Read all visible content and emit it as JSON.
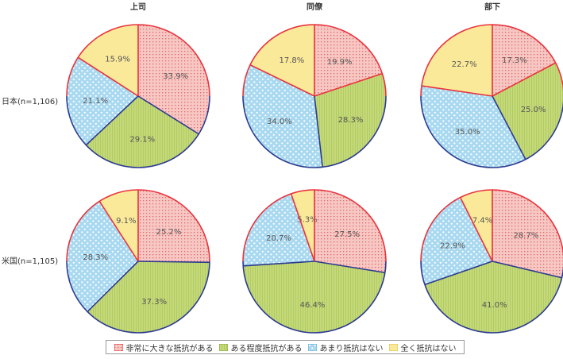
{
  "chart_data": {
    "type": "pie",
    "columns": [
      "上司",
      "同僚",
      "部下"
    ],
    "rows": [
      "日本(n=1,106)",
      "米国(n=1,105)"
    ],
    "categories": [
      "非常に大きな抵抗がある",
      "ある程度抵抗がある",
      "あまり抵抗はない",
      "全く抵抗はない"
    ],
    "pies": [
      {
        "row": "日本(n=1,106)",
        "column": "上司",
        "values": [
          33.9,
          29.1,
          21.1,
          15.9
        ],
        "labels": [
          "33.9%",
          "29.1%",
          "21.1%",
          "15.9%"
        ]
      },
      {
        "row": "日本(n=1,106)",
        "column": "同僚",
        "values": [
          19.9,
          28.3,
          34.0,
          17.8
        ],
        "labels": [
          "19.9%",
          "28.3%",
          "34.0%",
          "17.8%"
        ]
      },
      {
        "row": "日本(n=1,106)",
        "column": "部下",
        "values": [
          17.3,
          25.0,
          35.0,
          22.7
        ],
        "labels": [
          "17.3%",
          "25.0%",
          "35.0%",
          "22.7%"
        ]
      },
      {
        "row": "米国(n=1,105)",
        "column": "上司",
        "values": [
          25.2,
          37.3,
          28.3,
          9.1
        ],
        "labels": [
          "25.2%",
          "37.3%",
          "28.3%",
          "9.1%"
        ]
      },
      {
        "row": "米国(n=1,105)",
        "column": "同僚",
        "values": [
          27.5,
          46.4,
          20.7,
          5.3
        ],
        "labels": [
          "27.5%",
          "46.4%",
          "20.7%",
          "5.3%"
        ]
      },
      {
        "row": "米国(n=1,105)",
        "column": "部下",
        "values": [
          28.7,
          41.0,
          22.9,
          7.4
        ],
        "labels": [
          "28.7%",
          "41.0%",
          "22.9%",
          "7.4%"
        ]
      }
    ],
    "colors": {
      "fills": [
        "#f7c7c3",
        "#c4d97a",
        "#a9d9f0",
        "#fbe99a"
      ],
      "dots": [
        "#e06a6a",
        "#c4d97a",
        "#ffffff",
        "#fbe99a"
      ],
      "outline_top": "#e8323c",
      "outline_bottom": "#2b3a8f",
      "label_text": "#555555"
    },
    "legend": {
      "position": "bottom",
      "items": [
        {
          "label": "非常に大きな抵抗がある",
          "pattern": "grid-red"
        },
        {
          "label": "ある程度抵抗がある",
          "pattern": "stripe-green"
        },
        {
          "label": "あまり抵抗はない",
          "pattern": "dots-blue"
        },
        {
          "label": "全く抵抗はない",
          "pattern": "solid-yellow"
        }
      ]
    }
  }
}
